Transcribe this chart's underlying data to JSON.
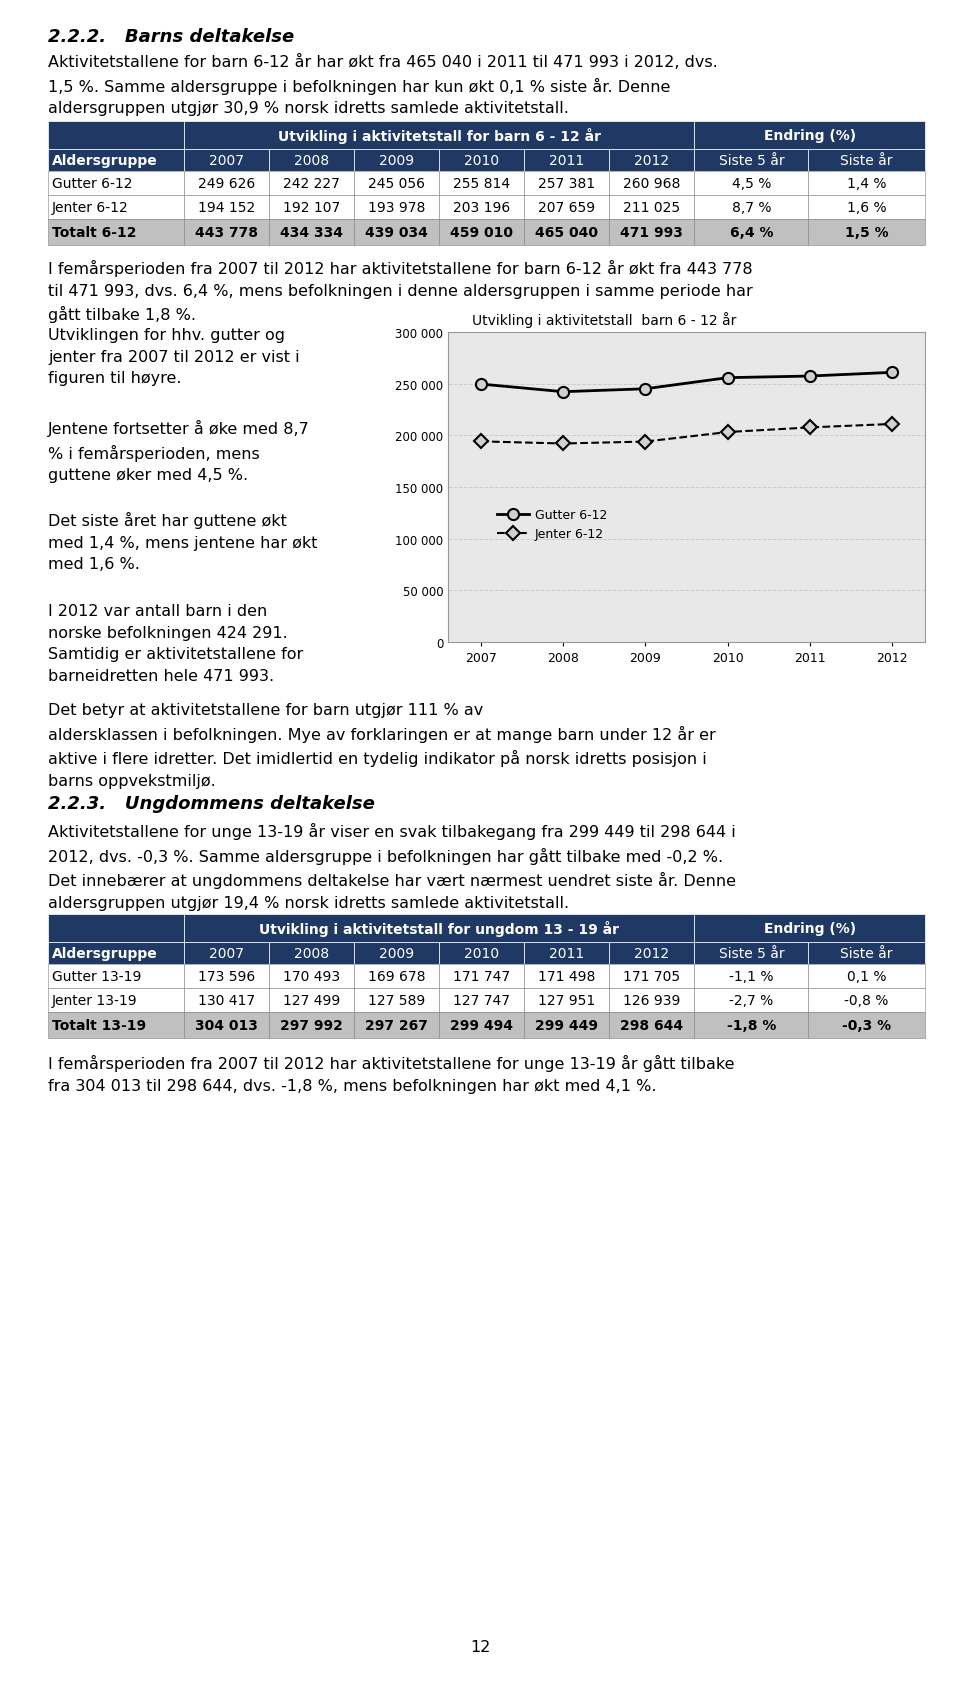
{
  "page_bg": "#ffffff",
  "section_title_1": "2.2.2.   Barns deltakelse",
  "para1": "Aktivitetstallene for barn 6-12 år har økt fra 465 040 i 2011 til 471 993 i 2012, dvs.\n1,5 %. Samme aldersgruppe i befolkningen har kun økt 0,1 % siste år. Denne\naldersgruppen utgjør 30,9 % norsk idretts samlede aktivitetstall.",
  "table1_header_main": "Utvikling i aktivitetstall for barn 6 - 12 år",
  "table1_header_change": "Endring (%)",
  "table1_col_headers": [
    "Aldersgruppe",
    "2007",
    "2008",
    "2009",
    "2010",
    "2011",
    "2012",
    "Siste 5 år",
    "Siste år"
  ],
  "table1_rows": [
    [
      "Gutter 6-12",
      "249 626",
      "242 227",
      "245 056",
      "255 814",
      "257 381",
      "260 968",
      "4,5 %",
      "1,4 %"
    ],
    [
      "Jenter 6-12",
      "194 152",
      "192 107",
      "193 978",
      "203 196",
      "207 659",
      "211 025",
      "8,7 %",
      "1,6 %"
    ],
    [
      "Totalt 6-12",
      "443 778",
      "434 334",
      "439 034",
      "459 010",
      "465 040",
      "471 993",
      "6,4 %",
      "1,5 %"
    ]
  ],
  "para2": "I femårsperioden fra 2007 til 2012 har aktivitetstallene for barn 6-12 år økt fra 443 778\ntil 471 993, dvs. 6,4 %, mens befolkningen i denne aldersgruppen i samme periode har\ngått tilbake 1,8 %.",
  "para3_left": "Utviklingen for hhv. gutter og\njenter fra 2007 til 2012 er vist i\nfiguren til høyre.",
  "para4_left": "Jentene fortsetter å øke med 8,7\n% i femårsperioden, mens\nguttene øker med 4,5 %.",
  "para5_left": "Det siste året har guttene økt\nmed 1,4 %, mens jentene har økt\nmed 1,6 %.",
  "para6_left": "I 2012 var antall barn i den\nnorske befolkningen 424 291.\nSamtidig er aktivitetstallene for\nbarneidretten hele 471 993.",
  "chart1_title": "Utvikling i aktivitetstall  barn 6 - 12 år",
  "chart1_years": [
    2007,
    2008,
    2009,
    2010,
    2011,
    2012
  ],
  "chart1_gutter": [
    249626,
    242227,
    245056,
    255814,
    257381,
    260968
  ],
  "chart1_jenter": [
    194152,
    192107,
    193978,
    203196,
    207659,
    211025
  ],
  "chart1_yticks": [
    0,
    50000,
    100000,
    150000,
    200000,
    250000,
    300000
  ],
  "chart1_ytick_labels": [
    "0",
    "50 000",
    "100 000",
    "150 000",
    "200 000",
    "250 000",
    "300 000"
  ],
  "para7": "Det betyr at aktivitetstallene for barn utgjør 111 % av\naldersklassen i befolkningen. Mye av forklaringen er at mange barn under 12 år er\naktive i flere idretter. Det imidlertid en tydelig indikator på norsk idretts posisjon i\nbarns oppvekstmiljø.",
  "section_title_2": "2.2.3.   Ungdommens deltakelse",
  "para8": "Aktivitetstallene for unge 13-19 år viser en svak tilbakegang fra 299 449 til 298 644 i\n2012, dvs. -0,3 %. Samme aldersgruppe i befolkningen har gått tilbake med -0,2 %.\nDet innebærer at ungdommens deltakelse har vært nærmest uendret siste år. Denne\naldersgruppen utgjør 19,4 % norsk idretts samlede aktivitetstall.",
  "table2_header_main": "Utvikling i aktivitetstall for ungdom 13 - 19 år",
  "table2_header_change": "Endring (%)",
  "table2_col_headers": [
    "Aldersgruppe",
    "2007",
    "2008",
    "2009",
    "2010",
    "2011",
    "2012",
    "Siste 5 år",
    "Siste år"
  ],
  "table2_rows": [
    [
      "Gutter 13-19",
      "173 596",
      "170 493",
      "169 678",
      "171 747",
      "171 498",
      "171 705",
      "-1,1 %",
      "0,1 %"
    ],
    [
      "Jenter 13-19",
      "130 417",
      "127 499",
      "127 589",
      "127 747",
      "127 951",
      "126 939",
      "-2,7 %",
      "-0,8 %"
    ],
    [
      "Totalt 13-19",
      "304 013",
      "297 992",
      "297 267",
      "299 494",
      "299 449",
      "298 644",
      "-1,8 %",
      "-0,3 %"
    ]
  ],
  "para9": "I femårsperioden fra 2007 til 2012 har aktivitetstallene for unge 13-19 år gått tilbake\nfra 304 013 til 298 644, dvs. -1,8 %, mens befolkningen har økt med 4,1 %.",
  "page_number": "12",
  "header_bg": "#1f3864",
  "header_text_color": "#ffffff",
  "row_bg_white": "#ffffff",
  "total_row_bg": "#c0c0c0",
  "chart_bg": "#e8e8e8",
  "font_size_body": 11.5,
  "font_size_section": 13,
  "font_size_table_header": 10,
  "font_size_table_data": 10
}
